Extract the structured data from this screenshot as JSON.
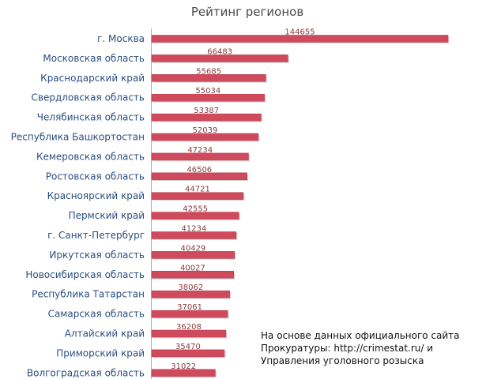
{
  "chart_data": {
    "type": "bar",
    "orientation": "horizontal",
    "title": "Рейтинг регионов",
    "categories": [
      "г. Москва",
      "Московская область",
      "Краснодарский край",
      "Свердловская область",
      "Челябинская область",
      "Республика Башкортостан",
      "Кемеровская область",
      "Ростовская область",
      "Красноярский край",
      "Пермский край",
      "г. Санкт-Петербург",
      "Иркутская область",
      "Новосибирская область",
      "Республика Татарстан",
      "Самарская область",
      "Алтайский край",
      "Приморский край",
      "Волгоградская область"
    ],
    "values": [
      144655,
      66483,
      55685,
      55034,
      53387,
      52039,
      47234,
      46506,
      44721,
      42555,
      41234,
      40429,
      40027,
      38062,
      37061,
      36208,
      35470,
      31022
    ],
    "xlim": [
      0,
      144655
    ],
    "grid": false,
    "legend": "none",
    "colors": {
      "bar": "#cf4a5c",
      "category_text": "#2a4d82",
      "value_text": "#8a3a3a"
    }
  },
  "note": {
    "lines": [
      "На основе данных официального сайта",
      "Прокуратуры: http://crimestat.ru/ и",
      "Управления уголовного розыска"
    ]
  }
}
